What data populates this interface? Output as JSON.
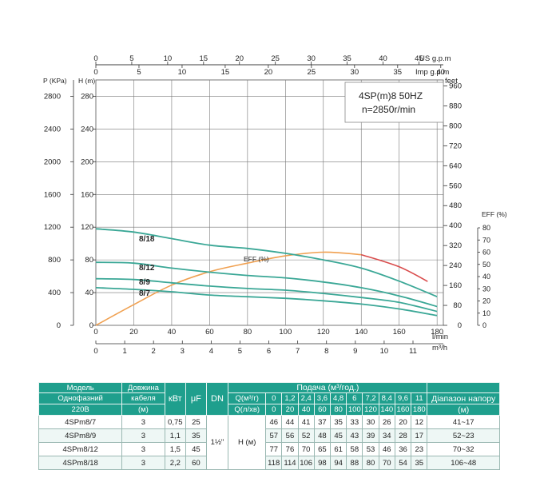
{
  "chart_data": {
    "type": "line",
    "title": "4SP(m)8  50HZ",
    "subtitle": "n=2850r/min",
    "top_axes": [
      {
        "label": "US g.p.m",
        "ticks": [
          "0",
          "5",
          "10",
          "15",
          "20",
          "25",
          "30",
          "35",
          "40",
          "45"
        ],
        "range": [
          0,
          48.4
        ]
      },
      {
        "label": "Imp g.p.m",
        "ticks": [
          "0",
          "5",
          "10",
          "15",
          "20",
          "25",
          "30",
          "35",
          "40"
        ],
        "range": [
          0,
          40.3
        ]
      }
    ],
    "bottom_axes": [
      {
        "label": "l/min",
        "ticks": [
          "0",
          "20",
          "40",
          "60",
          "80",
          "100",
          "120",
          "140",
          "160",
          "180"
        ],
        "range": [
          0,
          183.3
        ]
      },
      {
        "label": "m³/h",
        "ticks": [
          "0",
          "1",
          "2",
          "3",
          "4",
          "5",
          "6",
          "7",
          "8",
          "9",
          "10",
          "11"
        ],
        "range": [
          0,
          11
        ]
      }
    ],
    "left_axes": [
      {
        "label": "P (KPa)",
        "ticks": [
          "0",
          "400",
          "800",
          "1200",
          "1600",
          "2000",
          "2400",
          "2800"
        ],
        "range": [
          0,
          3000
        ]
      },
      {
        "label": "H (m)",
        "ticks": [
          "0",
          "40",
          "80",
          "120",
          "160",
          "200",
          "240",
          "280"
        ],
        "range": [
          0,
          300
        ]
      }
    ],
    "right_axes": [
      {
        "label": "feet",
        "ticks": [
          "0",
          "80",
          "160",
          "240",
          "320",
          "400",
          "480",
          "560",
          "640",
          "720",
          "800",
          "880",
          "960"
        ],
        "range": [
          0,
          984
        ]
      },
      {
        "label": "EFF (%)",
        "ticks": [
          "0",
          "10",
          "20",
          "30",
          "40",
          "50",
          "60",
          "70",
          "80"
        ],
        "range": [
          0,
          80
        ]
      }
    ],
    "x_unit": "l/min",
    "y_unit": "m",
    "grid": true,
    "series": [
      {
        "name": "8/18",
        "x": [
          0,
          20,
          40,
          60,
          80,
          100,
          120,
          140,
          160,
          180
        ],
        "y": [
          118,
          114,
          106,
          98,
          94,
          88,
          80,
          70,
          54,
          35
        ],
        "color": "#3aa796"
      },
      {
        "name": "8/12",
        "x": [
          0,
          20,
          40,
          60,
          80,
          100,
          120,
          140,
          160,
          180
        ],
        "y": [
          77,
          76,
          70,
          65,
          61,
          58,
          53,
          46,
          36,
          23
        ],
        "color": "#3aa796"
      },
      {
        "name": "8/9",
        "x": [
          0,
          20,
          40,
          60,
          80,
          100,
          120,
          140,
          160,
          180
        ],
        "y": [
          57,
          56,
          52,
          48,
          45,
          43,
          39,
          34,
          28,
          17
        ],
        "color": "#3aa796"
      },
      {
        "name": "8/7",
        "x": [
          0,
          20,
          40,
          60,
          80,
          100,
          120,
          140,
          160,
          180
        ],
        "y": [
          46,
          44,
          41,
          37,
          35,
          33,
          30,
          26,
          20,
          12
        ],
        "color": "#3aa796"
      }
    ],
    "efficiency": {
      "label": "EFF (%)",
      "x": [
        0,
        20,
        40,
        60,
        80,
        100,
        120,
        140,
        160,
        175
      ],
      "y": [
        0,
        17,
        33,
        44,
        51,
        57,
        60,
        58,
        48,
        36
      ],
      "color": "#f0a050",
      "tail_color": "#d94b4b"
    }
  },
  "table": {
    "header_top": {
      "model": "Модель",
      "cable": "Довжина",
      "kw": "кВт",
      "uf": "μF",
      "dn": "DN",
      "flow": "Подача (м³/год.)"
    },
    "header_mid": {
      "model": "Однофазний",
      "cable": "кабеля",
      "q_label": "Q(м³/г)",
      "q_values": [
        "0",
        "1,2",
        "2,4",
        "3,6",
        "4,8",
        "6",
        "7,2",
        "8,4",
        "9,6",
        "11"
      ],
      "range": "Діапазон напору"
    },
    "header_bot": {
      "model": "220В",
      "cable": "(м)",
      "q_label": "Q(л/хв)",
      "q_values": [
        "0",
        "20",
        "40",
        "60",
        "80",
        "100",
        "120",
        "140",
        "160",
        "180"
      ],
      "range": "(м)"
    },
    "dn_value": "1½\"",
    "head_label": "H (м)",
    "rows": [
      {
        "model": "4SPm8/7",
        "cable": "3",
        "kw": "0,75",
        "uf": "25",
        "heads": [
          "46",
          "44",
          "41",
          "37",
          "35",
          "33",
          "30",
          "26",
          "20",
          "12"
        ],
        "range": "41~17"
      },
      {
        "model": "4SPm8/9",
        "cable": "3",
        "kw": "1,1",
        "uf": "35",
        "heads": [
          "57",
          "56",
          "52",
          "48",
          "45",
          "43",
          "39",
          "34",
          "28",
          "17"
        ],
        "range": "52~23"
      },
      {
        "model": "4SPm8/12",
        "cable": "3",
        "kw": "1,5",
        "uf": "45",
        "heads": [
          "77",
          "76",
          "70",
          "65",
          "61",
          "58",
          "53",
          "46",
          "36",
          "23"
        ],
        "range": "70~32"
      },
      {
        "model": "4SPm8/18",
        "cable": "3",
        "kw": "2,2",
        "uf": "60",
        "heads": [
          "118",
          "114",
          "106",
          "98",
          "94",
          "88",
          "80",
          "70",
          "54",
          "35"
        ],
        "range": "106~48"
      }
    ]
  }
}
